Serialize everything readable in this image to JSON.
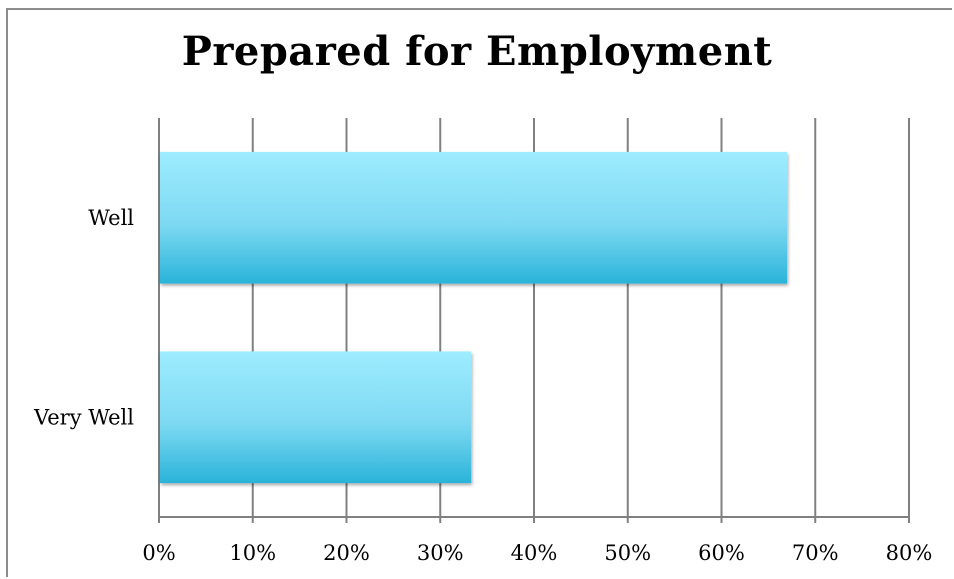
{
  "chart_data": {
    "type": "bar",
    "orientation": "horizontal",
    "title": "Prepared for Employment",
    "categories": [
      "Well",
      "Very Well"
    ],
    "values": [
      0.67,
      0.333
    ],
    "xlim": [
      0,
      0.8
    ],
    "xticks": [
      0,
      0.1,
      0.2,
      0.3,
      0.4,
      0.5,
      0.6,
      0.7,
      0.8
    ],
    "xtick_labels": [
      "0%",
      "10%",
      "20%",
      "30%",
      "40%",
      "50%",
      "60%",
      "70%",
      "80%"
    ],
    "grid": "vertical",
    "legend": "none",
    "colors": {
      "bar_top": "#9eecff",
      "bar_bottom": "#2ab3d9",
      "grid": "#808080"
    }
  }
}
